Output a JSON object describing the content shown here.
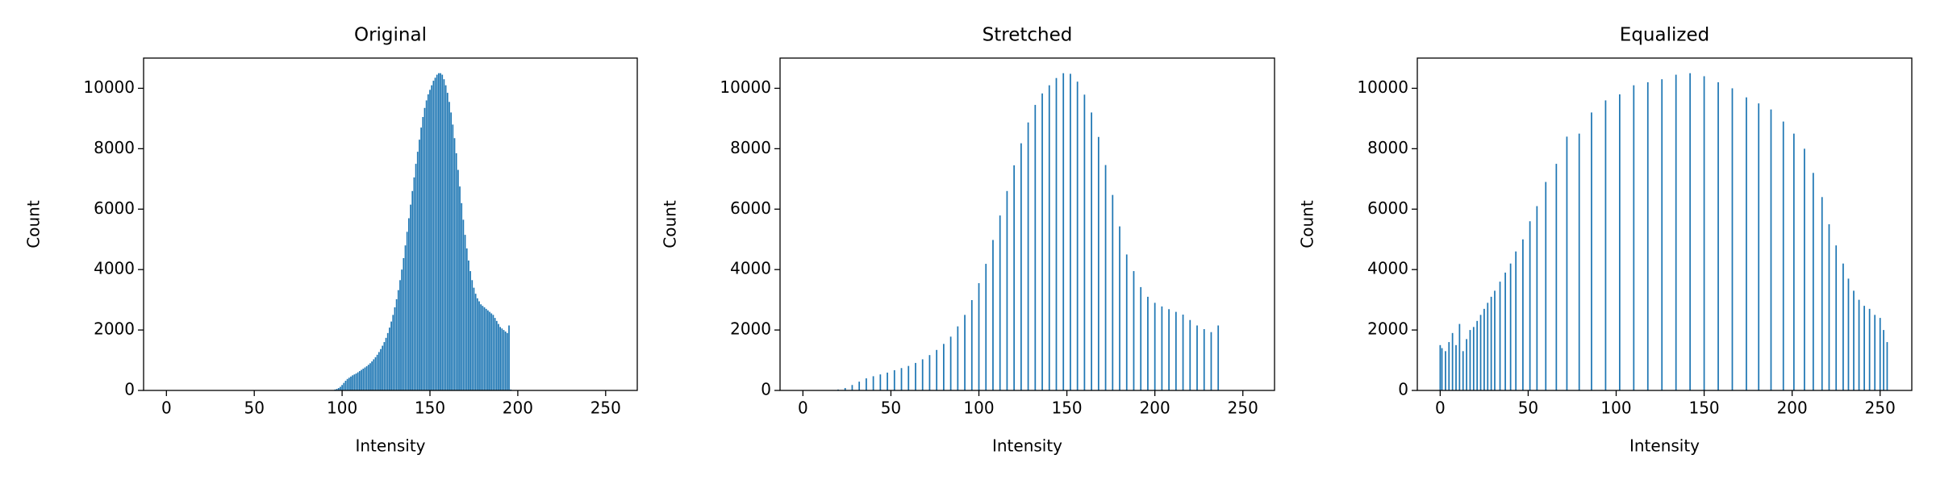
{
  "chart_data": [
    {
      "type": "bar",
      "title": "Original",
      "xlabel": "Intensity",
      "ylabel": "Count",
      "color": "#1f77b4",
      "x": [
        96,
        97,
        98,
        99,
        100,
        101,
        102,
        103,
        104,
        105,
        106,
        107,
        108,
        109,
        110,
        111,
        112,
        113,
        114,
        115,
        116,
        117,
        118,
        119,
        120,
        121,
        122,
        123,
        124,
        125,
        126,
        127,
        128,
        129,
        130,
        131,
        132,
        133,
        134,
        135,
        136,
        137,
        138,
        139,
        140,
        141,
        142,
        143,
        144,
        145,
        146,
        147,
        148,
        149,
        150,
        151,
        152,
        153,
        154,
        155,
        156,
        157,
        158,
        159,
        160,
        161,
        162,
        163,
        164,
        165,
        166,
        167,
        168,
        169,
        170,
        171,
        172,
        173,
        174,
        175,
        176,
        177,
        178,
        179,
        180,
        181,
        182,
        183,
        184,
        185,
        186,
        187,
        188,
        189,
        190,
        191,
        192,
        193,
        194,
        195,
        196
      ],
      "values": [
        30,
        50,
        80,
        120,
        180,
        250,
        320,
        380,
        420,
        460,
        500,
        530,
        560,
        600,
        640,
        680,
        720,
        760,
        800,
        850,
        900,
        960,
        1030,
        1100,
        1180,
        1270,
        1370,
        1480,
        1600,
        1740,
        1900,
        2080,
        2280,
        2500,
        2750,
        3020,
        3320,
        3650,
        4000,
        4380,
        4800,
        5250,
        5700,
        6150,
        6600,
        7050,
        7500,
        7900,
        8300,
        8700,
        9050,
        9350,
        9600,
        9800,
        9950,
        10100,
        10250,
        10350,
        10450,
        10500,
        10500,
        10450,
        10300,
        10100,
        9850,
        9550,
        9200,
        8800,
        8350,
        7850,
        7300,
        6750,
        6200,
        5650,
        5150,
        4700,
        4300,
        3950,
        3650,
        3400,
        3200,
        3050,
        2950,
        2850,
        2800,
        2750,
        2700,
        2650,
        2600,
        2550,
        2500,
        2400,
        2300,
        2200,
        2100,
        2050,
        2000,
        1950,
        1900,
        2150,
        30
      ],
      "xlim": [
        -13,
        268
      ],
      "ylim": [
        0,
        11000
      ],
      "xticks": [
        0,
        50,
        100,
        150,
        200,
        250
      ],
      "yticks": [
        0,
        2000,
        4000,
        6000,
        8000,
        10000
      ]
    },
    {
      "type": "bar",
      "title": "Stretched",
      "xlabel": "Intensity",
      "ylabel": "Count",
      "color": "#1f77b4",
      "x": [
        20,
        24,
        28,
        32,
        36,
        40,
        44,
        48,
        52,
        56,
        60,
        64,
        68,
        72,
        76,
        80,
        84,
        88,
        92,
        96,
        100,
        104,
        108,
        112,
        116,
        120,
        124,
        128,
        132,
        136,
        140,
        144,
        148,
        152,
        156,
        160,
        164,
        168,
        172,
        176,
        180,
        184,
        188,
        192,
        196,
        200,
        204,
        208,
        212,
        216,
        220,
        224,
        228,
        232,
        236
      ],
      "values": [
        30,
        80,
        180,
        290,
        400,
        470,
        530,
        590,
        670,
        740,
        810,
        910,
        1030,
        1170,
        1340,
        1540,
        1780,
        2120,
        2500,
        2990,
        3550,
        4190,
        4980,
        5790,
        6600,
        7450,
        8180,
        8870,
        9450,
        9830,
        10100,
        10340,
        10500,
        10480,
        10220,
        9790,
        9200,
        8390,
        7460,
        6470,
        5430,
        4500,
        3950,
        3420,
        3100,
        2900,
        2780,
        2690,
        2600,
        2510,
        2330,
        2150,
        2030,
        1930,
        2150
      ],
      "xlim": [
        -13,
        268
      ],
      "ylim": [
        0,
        11000
      ],
      "xticks": [
        0,
        50,
        100,
        150,
        200,
        250
      ],
      "yticks": [
        0,
        2000,
        4000,
        6000,
        8000,
        10000
      ]
    },
    {
      "type": "bar",
      "title": "Equalized",
      "xlabel": "Intensity",
      "ylabel": "Count",
      "color": "#1f77b4",
      "x": [
        0,
        1,
        3,
        5,
        7,
        9,
        11,
        13,
        15,
        17,
        19,
        21,
        23,
        25,
        27,
        29,
        31,
        34,
        37,
        40,
        43,
        47,
        51,
        55,
        60,
        66,
        72,
        79,
        86,
        94,
        102,
        110,
        118,
        126,
        134,
        142,
        150,
        158,
        166,
        174,
        181,
        188,
        195,
        201,
        207,
        212,
        217,
        221,
        225,
        229,
        232,
        235,
        238,
        241,
        244,
        247,
        250,
        252,
        254
      ],
      "values": [
        1500,
        1400,
        1300,
        1600,
        1900,
        1500,
        2200,
        1300,
        1700,
        2000,
        2100,
        2300,
        2500,
        2700,
        2900,
        3100,
        3300,
        3600,
        3900,
        4200,
        4600,
        5000,
        5600,
        6100,
        6900,
        7500,
        8400,
        8500,
        9200,
        9600,
        9800,
        10100,
        10200,
        10300,
        10450,
        10500,
        10400,
        10200,
        10000,
        9700,
        9500,
        9300,
        8900,
        8500,
        8000,
        7200,
        6400,
        5500,
        4800,
        4200,
        3700,
        3300,
        3000,
        2800,
        2700,
        2500,
        2400,
        2000,
        1600
      ],
      "xlim": [
        -13,
        268
      ],
      "ylim": [
        0,
        11000
      ],
      "xticks": [
        0,
        50,
        100,
        150,
        200,
        250
      ],
      "yticks": [
        0,
        2000,
        4000,
        6000,
        8000,
        10000
      ]
    }
  ]
}
